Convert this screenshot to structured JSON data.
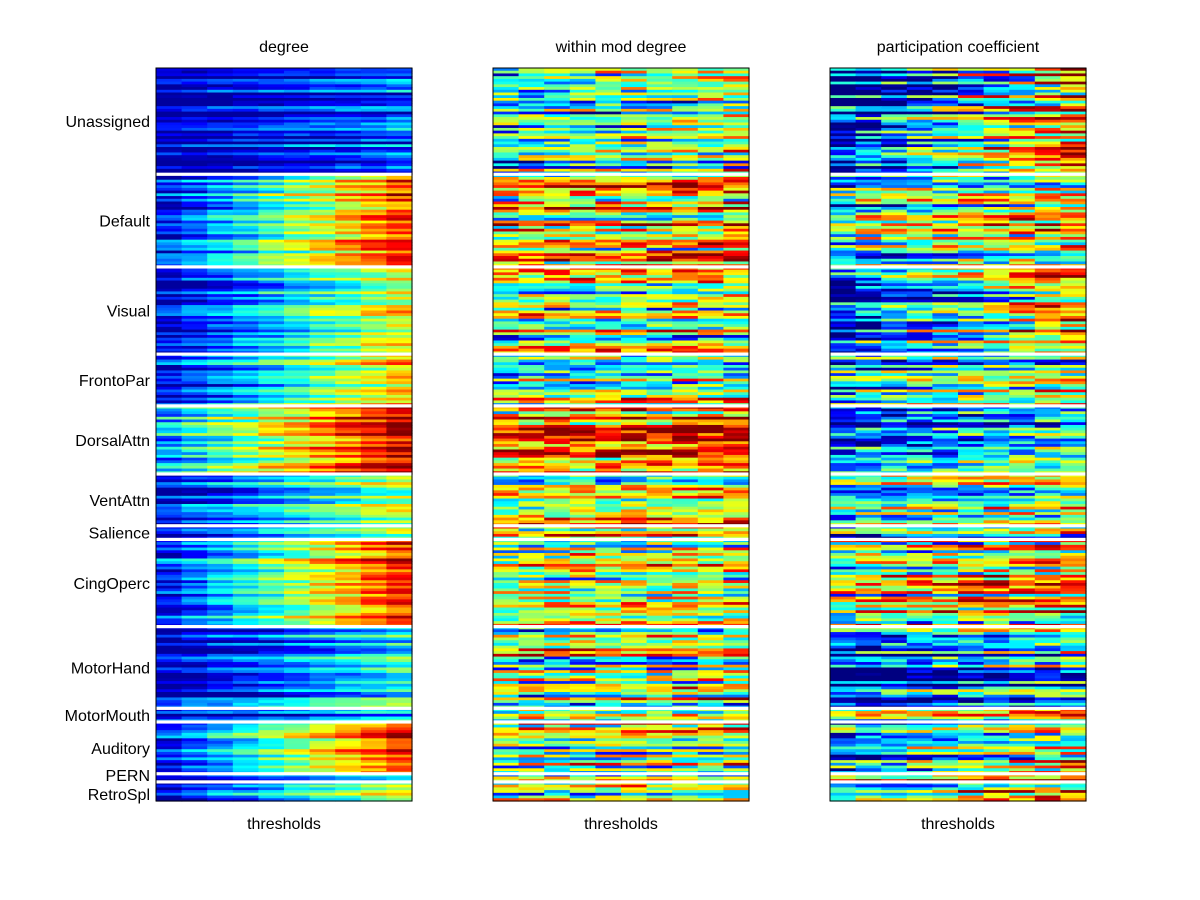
{
  "chart_data": {
    "type": "heatmap",
    "colormap": "jet",
    "n_thresholds": 10,
    "panels": [
      {
        "title": "degree",
        "xlabel": "thresholds"
      },
      {
        "title": "within mod degree",
        "xlabel": "thresholds"
      },
      {
        "title": "participation coefficient",
        "xlabel": "thresholds"
      }
    ],
    "row_groups": [
      {
        "label": "Unassigned",
        "rows": 39
      },
      {
        "label": "Default",
        "rows": 34
      },
      {
        "label": "Visual",
        "rows": 32
      },
      {
        "label": "FrontoPar",
        "rows": 19
      },
      {
        "label": "DorsalAttn",
        "rows": 25
      },
      {
        "label": "VentAttn",
        "rows": 19
      },
      {
        "label": "Salience",
        "rows": 5
      },
      {
        "label": "CingOperc",
        "rows": 32
      },
      {
        "label": "MotorHand",
        "rows": 30
      },
      {
        "label": "MotorMouth",
        "rows": 5
      },
      {
        "label": "Auditory",
        "rows": 19
      },
      {
        "label": "PERN",
        "rows": 3
      },
      {
        "label": "RetroSpl",
        "rows": 7
      }
    ],
    "value_range": [
      0,
      1
    ],
    "value_profiles": {
      "degree": [
        {
          "group": "Unassigned",
          "start": 0.05,
          "end": 0.22
        },
        {
          "group": "Default",
          "start": 0.15,
          "end": 0.8
        },
        {
          "group": "Visual",
          "start": 0.1,
          "end": 0.6
        },
        {
          "group": "FrontoPar",
          "start": 0.12,
          "end": 0.65
        },
        {
          "group": "DorsalAttn",
          "start": 0.3,
          "end": 0.92
        },
        {
          "group": "VentAttn",
          "start": 0.12,
          "end": 0.55
        },
        {
          "group": "Salience",
          "start": 0.1,
          "end": 0.5
        },
        {
          "group": "CingOperc",
          "start": 0.2,
          "end": 0.88
        },
        {
          "group": "MotorHand",
          "start": 0.08,
          "end": 0.4
        },
        {
          "group": "MotorMouth",
          "start": 0.08,
          "end": 0.3
        },
        {
          "group": "Auditory",
          "start": 0.15,
          "end": 0.82
        },
        {
          "group": "PERN",
          "start": 0.1,
          "end": 0.4
        },
        {
          "group": "RetroSpl",
          "start": 0.12,
          "end": 0.6
        }
      ],
      "within mod degree": [
        {
          "group": "Unassigned",
          "start": 0.35,
          "end": 0.5
        },
        {
          "group": "Default",
          "start": 0.6,
          "end": 0.65
        },
        {
          "group": "Visual",
          "start": 0.5,
          "end": 0.55
        },
        {
          "group": "FrontoPar",
          "start": 0.5,
          "end": 0.55
        },
        {
          "group": "DorsalAttn",
          "start": 0.7,
          "end": 0.75
        },
        {
          "group": "VentAttn",
          "start": 0.55,
          "end": 0.6
        },
        {
          "group": "Salience",
          "start": 0.5,
          "end": 0.55
        },
        {
          "group": "CingOperc",
          "start": 0.55,
          "end": 0.6
        },
        {
          "group": "MotorHand",
          "start": 0.5,
          "end": 0.55
        },
        {
          "group": "MotorMouth",
          "start": 0.7,
          "end": 0.75
        },
        {
          "group": "Auditory",
          "start": 0.55,
          "end": 0.6
        },
        {
          "group": "PERN",
          "start": 0.5,
          "end": 0.55
        },
        {
          "group": "RetroSpl",
          "start": 0.5,
          "end": 0.55
        }
      ],
      "participation coefficient": [
        {
          "group": "Unassigned",
          "start": 0.05,
          "end": 0.7
        },
        {
          "group": "Default",
          "start": 0.4,
          "end": 0.6
        },
        {
          "group": "Visual",
          "start": 0.1,
          "end": 0.7
        },
        {
          "group": "FrontoPar",
          "start": 0.3,
          "end": 0.5
        },
        {
          "group": "DorsalAttn",
          "start": 0.15,
          "end": 0.35
        },
        {
          "group": "VentAttn",
          "start": 0.4,
          "end": 0.6
        },
        {
          "group": "Salience",
          "start": 0.3,
          "end": 0.5
        },
        {
          "group": "CingOperc",
          "start": 0.5,
          "end": 0.65
        },
        {
          "group": "MotorHand",
          "start": 0.15,
          "end": 0.4
        },
        {
          "group": "MotorMouth",
          "start": 0.4,
          "end": 0.6
        },
        {
          "group": "Auditory",
          "start": 0.3,
          "end": 0.6
        },
        {
          "group": "PERN",
          "start": 0.6,
          "end": 0.85
        },
        {
          "group": "RetroSpl",
          "start": 0.5,
          "end": 0.8
        }
      ]
    },
    "separator_color": "#ffffff",
    "frame_color": "#000000"
  }
}
